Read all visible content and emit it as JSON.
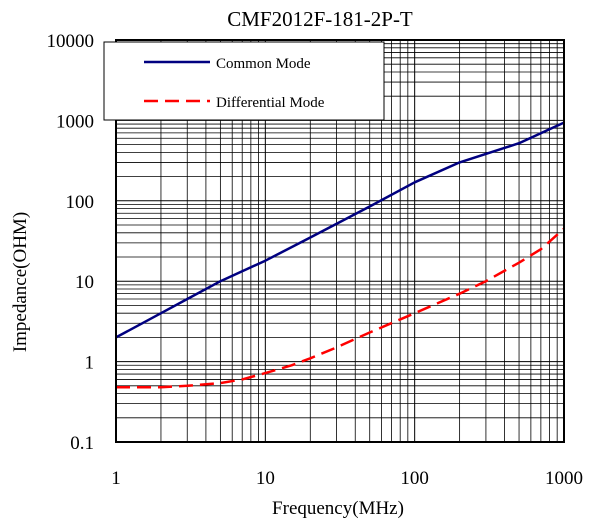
{
  "chart_data": {
    "type": "line",
    "title": "CMF2012F-181-2P-T",
    "xlabel": "Frequency(MHz)",
    "ylabel": "Impedance(OHM)",
    "x_scale": "log",
    "y_scale": "log",
    "xlim": [
      1,
      1000
    ],
    "ylim": [
      0.1,
      10000
    ],
    "x_ticks": [
      "1",
      "10",
      "100",
      "1000"
    ],
    "y_ticks": [
      "0.1",
      "1",
      "10",
      "100",
      "1000",
      "10000"
    ],
    "grid": true,
    "legend_position": "top-left",
    "series": [
      {
        "name": "Common Mode",
        "color": "#000080",
        "style": "solid",
        "x": [
          1,
          2,
          3,
          5,
          10,
          20,
          50,
          100,
          200,
          500,
          1000
        ],
        "y": [
          2,
          4,
          6,
          10,
          18,
          35,
          85,
          170,
          300,
          520,
          940
        ]
      },
      {
        "name": "Differential Mode",
        "color": "#ff0000",
        "style": "dashed",
        "x": [
          1,
          1.5,
          2,
          3,
          5,
          7,
          10,
          15,
          20,
          30,
          50,
          100,
          200,
          300,
          500,
          700,
          1000
        ],
        "y": [
          0.48,
          0.48,
          0.48,
          0.5,
          0.54,
          0.6,
          0.72,
          0.9,
          1.1,
          1.5,
          2.3,
          4,
          7,
          10,
          17,
          25,
          45
        ]
      }
    ]
  }
}
